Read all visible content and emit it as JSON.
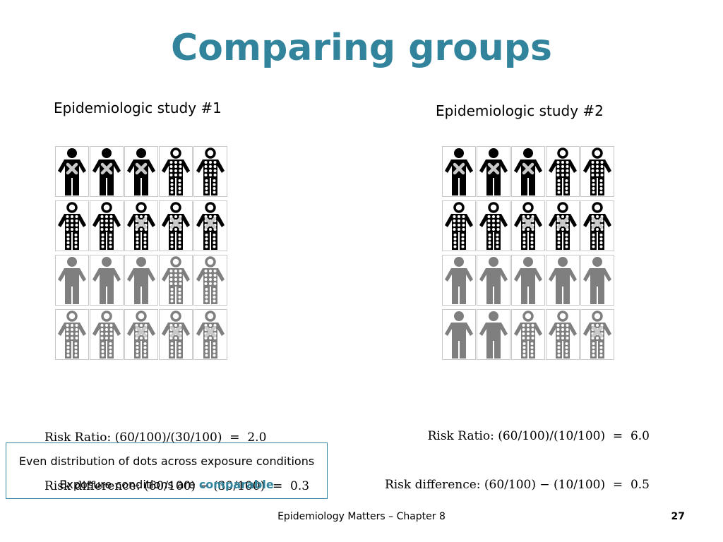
{
  "slide": {
    "title": "Comparing groups",
    "footer": "Epidemiology Matters – Chapter 8",
    "page_number": "27"
  },
  "study1": {
    "label": "Epidemiologic study #1",
    "rows": [
      [
        {
          "color": "black",
          "dots": false,
          "x": true
        },
        {
          "color": "black",
          "dots": false,
          "x": true
        },
        {
          "color": "black",
          "dots": false,
          "x": true
        },
        {
          "color": "black",
          "dots": true,
          "x": false
        },
        {
          "color": "black",
          "dots": true,
          "x": false
        }
      ],
      [
        {
          "color": "black",
          "dots": true,
          "x": false
        },
        {
          "color": "black",
          "dots": true,
          "x": false
        },
        {
          "color": "black",
          "dots": true,
          "x": true
        },
        {
          "color": "black",
          "dots": true,
          "x": true
        },
        {
          "color": "black",
          "dots": true,
          "x": true
        }
      ],
      [
        {
          "color": "gray",
          "dots": false,
          "x": false
        },
        {
          "color": "gray",
          "dots": false,
          "x": false
        },
        {
          "color": "gray",
          "dots": false,
          "x": false
        },
        {
          "color": "gray",
          "dots": true,
          "x": false
        },
        {
          "color": "gray",
          "dots": true,
          "x": false
        }
      ],
      [
        {
          "color": "gray",
          "dots": true,
          "x": false
        },
        {
          "color": "gray",
          "dots": true,
          "x": false
        },
        {
          "color": "gray",
          "dots": true,
          "x": true
        },
        {
          "color": "gray",
          "dots": true,
          "x": true
        },
        {
          "color": "gray",
          "dots": true,
          "x": true
        }
      ]
    ],
    "risk_ratio": "Risk Ratio: (60/100)/(30/100)  =  2.0",
    "risk_difference": "Risk difference: (60/100) − (30/100)  =  0.3"
  },
  "study2": {
    "label": "Epidemiologic study #2",
    "rows": [
      [
        {
          "color": "black",
          "dots": false,
          "x": true
        },
        {
          "color": "black",
          "dots": false,
          "x": true
        },
        {
          "color": "black",
          "dots": false,
          "x": true
        },
        {
          "color": "black",
          "dots": true,
          "x": false
        },
        {
          "color": "black",
          "dots": true,
          "x": false
        }
      ],
      [
        {
          "color": "black",
          "dots": true,
          "x": false
        },
        {
          "color": "black",
          "dots": true,
          "x": false
        },
        {
          "color": "black",
          "dots": true,
          "x": true
        },
        {
          "color": "black",
          "dots": true,
          "x": true
        },
        {
          "color": "black",
          "dots": true,
          "x": true
        }
      ],
      [
        {
          "color": "gray",
          "dots": false,
          "x": false
        },
        {
          "color": "gray",
          "dots": false,
          "x": false
        },
        {
          "color": "gray",
          "dots": false,
          "x": false
        },
        {
          "color": "gray",
          "dots": false,
          "x": false
        },
        {
          "color": "gray",
          "dots": false,
          "x": false
        }
      ],
      [
        {
          "color": "gray",
          "dots": false,
          "x": false
        },
        {
          "color": "gray",
          "dots": false,
          "x": false
        },
        {
          "color": "gray",
          "dots": true,
          "x": false
        },
        {
          "color": "gray",
          "dots": true,
          "x": false
        },
        {
          "color": "gray",
          "dots": true,
          "x": true
        }
      ]
    ],
    "risk_ratio": "Risk Ratio: (60/100)/(10/100)  =  6.0",
    "risk_difference": "Risk difference: (60/100) − (10/100)  =  0.5"
  },
  "note": {
    "line1": "Even distribution of dots across exposure conditions",
    "line2_prefix": "Exposure conditions are ",
    "line2_highlight": "comparable"
  },
  "colors": {
    "accent": "#31849b",
    "figure_black": "#000000",
    "figure_gray": "#7f7f7f"
  },
  "icons": {
    "person": "person-icon",
    "dot": "dot-pattern",
    "cross": "x-mark-icon"
  }
}
